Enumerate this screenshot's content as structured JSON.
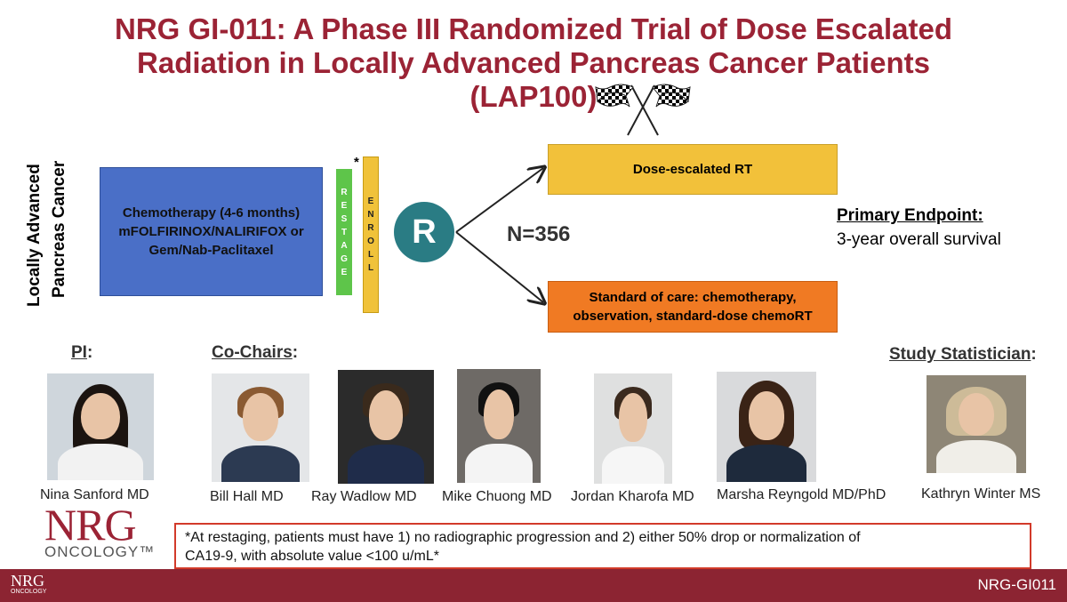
{
  "title": {
    "line1": "NRG GI-011: A Phase III Randomized Trial of Dose Escalated",
    "line2": "Radiation in Locally Advanced Pancreas Cancer Patients",
    "line3": "(LAP100)"
  },
  "side_label": {
    "line1": "Locally Advanced",
    "line2": "Pancreas Cancer"
  },
  "chemo": {
    "line1": "Chemotherapy (4-6 months)",
    "line2": "mFOLFIRINOX/NALIRIFOX or",
    "line3": "Gem/Nab-Paclitaxel"
  },
  "restage_letters": [
    "R",
    "E",
    "S",
    "T",
    "A",
    "G",
    "E"
  ],
  "enroll_letters": [
    "E",
    "N",
    "R",
    "O",
    "L",
    "L"
  ],
  "asterisk": "*",
  "randomize": "R",
  "n_label": "N=356",
  "arm_dose": "Dose-escalated RT",
  "arm_soc": {
    "line1": "Standard of care: chemotherapy,",
    "line2": "observation, standard-dose chemoRT"
  },
  "endpoint": {
    "title": "Primary Endpoint:",
    "value": "3-year overall survival"
  },
  "roles": {
    "pi": "PI",
    "cochairs": "Co-Chairs",
    "statistician": "Study Statistician",
    "colon": ":"
  },
  "people": [
    {
      "name": "Nina Sanford MD"
    },
    {
      "name": "Bill Hall MD"
    },
    {
      "name": "Ray Wadlow MD"
    },
    {
      "name": "Mike Chuong MD"
    },
    {
      "name": "Jordan Kharofa MD"
    },
    {
      "name": "Marsha Reyngold MD/PhD"
    },
    {
      "name": "Kathryn Winter MS"
    }
  ],
  "footnote": {
    "line1": "*At restaging, patients must have 1) no radiographic progression and 2) either 50% drop or normalization of",
    "line2": "CA19-9, with absolute value <100 u/mL*"
  },
  "logo": {
    "main": "NRG",
    "sub": "ONCOLOGY™"
  },
  "small_logo": {
    "main": "NRG",
    "sub": "ONCOLOGY"
  },
  "bottom_label": "NRG-GI011",
  "colors": {
    "title": "#9b2335",
    "chemo_box": "#4a6fc7",
    "restage_bar": "#5ec54a",
    "enroll_bar": "#f0c23a",
    "randomize_circle": "#2a7c84",
    "dose_box": "#f2c13a",
    "soc_box": "#f07a23",
    "footnote_border": "#d23a2a",
    "bottom_bar": "#8c2432"
  },
  "icons": [
    "checkered-flags-icon"
  ]
}
